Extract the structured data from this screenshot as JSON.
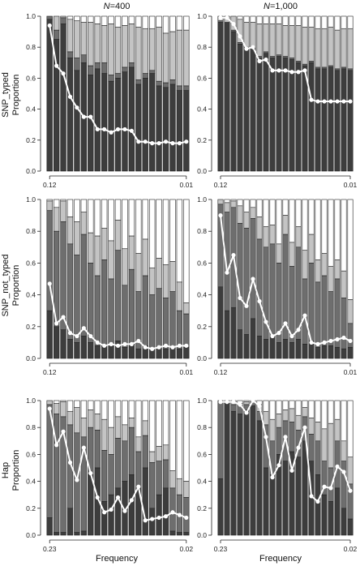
{
  "figure": {
    "columns": [
      {
        "prefix": "N",
        "suffix": "=400"
      },
      {
        "prefix": "N",
        "suffix": "=1,000"
      }
    ],
    "rows": [
      {
        "name": "SNP_typed",
        "ylabel": "Proportion"
      },
      {
        "name": "SNP_not_typed",
        "ylabel": "Proportion"
      },
      {
        "name": "Hap",
        "ylabel": "Proportion"
      }
    ],
    "xlabel": "Frequency",
    "bar_colors": [
      "#3d3d3d",
      "#6e6e6e",
      "#c4c4c4",
      "#ffffff"
    ],
    "line_color": "#ffffff",
    "bar_stroke": "#222222"
  },
  "chart_data": [
    {
      "type": "bar",
      "panel": "SNP_typed N=400",
      "row_label": "SNP_typed",
      "column_label": "N=400",
      "x_tick_labels": [
        "0.12",
        "0.01"
      ],
      "ylim": [
        0,
        1
      ],
      "yticks": [
        0,
        0.2,
        0.4,
        0.6,
        0.8,
        1.0
      ],
      "series": [
        {
          "values": [
            0.98,
            0.85,
            0.95,
            0.73,
            0.65,
            0.7,
            0.62,
            0.66,
            0.63,
            0.58,
            0.6,
            0.64,
            0.67,
            0.56,
            0.6,
            0.63,
            0.55,
            0.54,
            0.56,
            0.52,
            0.52
          ]
        },
        {
          "values": [
            1.0,
            0.91,
            0.99,
            0.77,
            0.73,
            0.75,
            0.68,
            0.7,
            0.7,
            0.62,
            0.63,
            0.67,
            0.7,
            0.59,
            0.63,
            0.65,
            0.58,
            0.57,
            0.59,
            0.55,
            0.55
          ]
        },
        {
          "values": [
            1.0,
            1.0,
            1.0,
            0.98,
            0.97,
            0.96,
            0.96,
            0.95,
            0.94,
            0.95,
            0.93,
            0.94,
            0.95,
            0.93,
            0.92,
            0.92,
            0.93,
            0.89,
            0.9,
            0.91,
            0.91
          ]
        },
        {
          "values": [
            1,
            1,
            1,
            1,
            1,
            1,
            1,
            1,
            1,
            1,
            1,
            1,
            1,
            1,
            1,
            1,
            1,
            1,
            1,
            1,
            1
          ]
        }
      ],
      "line": [
        0.94,
        0.68,
        0.63,
        0.48,
        0.41,
        0.35,
        0.35,
        0.27,
        0.27,
        0.25,
        0.27,
        0.27,
        0.26,
        0.19,
        0.19,
        0.18,
        0.18,
        0.19,
        0.18,
        0.18,
        0.19
      ]
    },
    {
      "type": "bar",
      "panel": "SNP_typed N=1,000",
      "row_label": "SNP_typed",
      "column_label": "N=1,000",
      "x_tick_labels": [
        "0.12",
        "0.01"
      ],
      "ylim": [
        0,
        1
      ],
      "yticks": [
        0,
        0.2,
        0.4,
        0.6,
        0.8,
        1.0
      ],
      "series": [
        {
          "values": [
            0.96,
            0.96,
            0.9,
            0.82,
            0.79,
            0.79,
            0.73,
            0.76,
            0.73,
            0.74,
            0.73,
            0.72,
            0.7,
            0.68,
            0.7,
            0.66,
            0.66,
            0.67,
            0.65,
            0.66,
            0.65
          ]
        },
        {
          "values": [
            0.97,
            0.96,
            0.91,
            0.83,
            0.8,
            0.8,
            0.74,
            0.77,
            0.74,
            0.75,
            0.74,
            0.73,
            0.71,
            0.69,
            0.71,
            0.67,
            0.67,
            0.68,
            0.66,
            0.67,
            0.66
          ]
        },
        {
          "values": [
            1.0,
            1.0,
            1.0,
            0.98,
            0.96,
            0.96,
            0.95,
            0.95,
            0.95,
            0.95,
            0.94,
            0.94,
            0.94,
            0.93,
            0.93,
            0.92,
            0.92,
            0.93,
            0.91,
            0.92,
            0.92
          ]
        },
        {
          "values": [
            1,
            1,
            1,
            1,
            1,
            1,
            1,
            1,
            1,
            1,
            1,
            1,
            1,
            1,
            1,
            1,
            1,
            1,
            1,
            1,
            1
          ]
        }
      ],
      "line": [
        0.99,
        0.99,
        0.95,
        0.87,
        0.79,
        0.8,
        0.71,
        0.72,
        0.65,
        0.65,
        0.65,
        0.64,
        0.64,
        0.65,
        0.46,
        0.45,
        0.45,
        0.45,
        0.45,
        0.45,
        0.45
      ]
    },
    {
      "type": "bar",
      "panel": "SNP_not_typed N=400",
      "row_label": "SNP_not_typed",
      "column_label": "N=400",
      "x_tick_labels": [
        "0.12",
        "0.01"
      ],
      "ylim": [
        0,
        1
      ],
      "yticks": [
        0,
        0.2,
        0.4,
        0.6,
        0.8,
        1.0
      ],
      "series": [
        {
          "values": [
            0.3,
            0.2,
            0.18,
            0.12,
            0.1,
            0.14,
            0.1,
            0.08,
            0.09,
            0.08,
            0.11,
            0.07,
            0.09,
            0.06,
            0.08,
            0.06,
            0.07,
            0.06,
            0.07,
            0.06,
            0.07
          ]
        },
        {
          "values": [
            0.93,
            0.8,
            0.86,
            0.72,
            0.65,
            0.78,
            0.6,
            0.52,
            0.62,
            0.5,
            0.68,
            0.46,
            0.56,
            0.42,
            0.52,
            0.4,
            0.44,
            0.38,
            0.42,
            0.3,
            0.28
          ]
        },
        {
          "values": [
            0.99,
            0.95,
            0.99,
            0.89,
            0.86,
            0.92,
            0.79,
            0.77,
            0.82,
            0.74,
            0.87,
            0.69,
            0.77,
            0.66,
            0.75,
            0.57,
            0.63,
            0.59,
            0.61,
            0.48,
            0.35
          ]
        },
        {
          "values": [
            1,
            1,
            1,
            1,
            1,
            1,
            1,
            1,
            1,
            1,
            1,
            1,
            1,
            1,
            1,
            1,
            1,
            1,
            1,
            1,
            1
          ]
        }
      ],
      "line": [
        0.47,
        0.22,
        0.26,
        0.16,
        0.14,
        0.19,
        0.14,
        0.1,
        0.08,
        0.09,
        0.08,
        0.09,
        0.09,
        0.11,
        0.07,
        0.06,
        0.07,
        0.08,
        0.07,
        0.08,
        0.08
      ]
    },
    {
      "type": "bar",
      "panel": "SNP_not_typed N=1,000",
      "row_label": "SNP_not_typed",
      "column_label": "N=1,000",
      "x_tick_labels": [
        "0.12",
        "0.01"
      ],
      "ylim": [
        0,
        1
      ],
      "yticks": [
        0,
        0.2,
        0.4,
        0.6,
        0.8,
        1.0
      ],
      "series": [
        {
          "values": [
            0.45,
            0.3,
            0.32,
            0.18,
            0.15,
            0.25,
            0.14,
            0.12,
            0.14,
            0.1,
            0.12,
            0.1,
            0.12,
            0.09,
            0.11,
            0.07,
            0.08,
            0.08,
            0.07,
            0.06,
            0.07
          ]
        },
        {
          "values": [
            0.97,
            0.92,
            0.95,
            0.85,
            0.82,
            0.88,
            0.75,
            0.7,
            0.72,
            0.6,
            0.78,
            0.58,
            0.7,
            0.5,
            0.6,
            0.48,
            0.52,
            0.42,
            0.5,
            0.38,
            0.22
          ]
        },
        {
          "values": [
            1.0,
            0.98,
            0.99,
            0.96,
            0.92,
            0.95,
            0.89,
            0.83,
            0.84,
            0.72,
            0.9,
            0.73,
            0.83,
            0.68,
            0.78,
            0.62,
            0.66,
            0.58,
            0.62,
            0.55,
            0.37
          ]
        },
        {
          "values": [
            1,
            1,
            1,
            1,
            1,
            1,
            1,
            1,
            1,
            1,
            1,
            1,
            1,
            1,
            1,
            1,
            1,
            1,
            1,
            1,
            1
          ]
        }
      ],
      "line": [
        0.9,
        0.54,
        0.65,
        0.38,
        0.33,
        0.5,
        0.36,
        0.23,
        0.14,
        0.16,
        0.22,
        0.14,
        0.18,
        0.27,
        0.1,
        0.09,
        0.1,
        0.11,
        0.12,
        0.13,
        0.11
      ]
    },
    {
      "type": "bar",
      "panel": "Hap N=400",
      "row_label": "Hap",
      "column_label": "N=400",
      "x_tick_labels": [
        "0.23",
        "0.02"
      ],
      "ylim": [
        0,
        1
      ],
      "yticks": [
        0,
        0.2,
        0.4,
        0.6,
        0.8,
        1.0
      ],
      "series": [
        {
          "values": [
            0.13,
            0.02,
            0.02,
            0.2,
            0.02,
            0.03,
            0.45,
            0.5,
            0.25,
            0.3,
            0.35,
            0.4,
            0.45,
            0.35,
            0.5,
            0.2,
            0.3,
            0.35,
            0.03,
            0.02,
            0.02
          ]
        },
        {
          "values": [
            0.97,
            0.9,
            0.88,
            0.82,
            0.76,
            0.73,
            0.8,
            0.78,
            0.63,
            0.6,
            0.72,
            0.7,
            0.8,
            0.62,
            0.74,
            0.54,
            0.55,
            0.56,
            0.35,
            0.3,
            0.28
          ]
        },
        {
          "values": [
            1.0,
            0.98,
            0.99,
            0.92,
            0.95,
            0.87,
            0.93,
            0.9,
            0.86,
            0.8,
            0.88,
            0.82,
            0.87,
            0.73,
            0.85,
            0.62,
            0.66,
            0.67,
            0.48,
            0.42,
            0.4
          ]
        },
        {
          "values": [
            1,
            1,
            1,
            1,
            1,
            1,
            1,
            1,
            1,
            1,
            1,
            1,
            1,
            1,
            1,
            1,
            1,
            1,
            1,
            1,
            1
          ]
        }
      ],
      "line": [
        0.94,
        0.67,
        0.77,
        0.54,
        0.41,
        0.65,
        0.46,
        0.28,
        0.17,
        0.19,
        0.28,
        0.18,
        0.26,
        0.36,
        0.11,
        0.12,
        0.13,
        0.14,
        0.17,
        0.15,
        0.13
      ]
    },
    {
      "type": "bar",
      "panel": "Hap N=1,000",
      "row_label": "Hap",
      "column_label": "N=1,000",
      "x_tick_labels": [
        "0.23",
        "0.02"
      ],
      "ylim": [
        0,
        1
      ],
      "yticks": [
        0,
        0.2,
        0.4,
        0.6,
        0.8,
        1.0
      ],
      "series": [
        {
          "values": [
            0.42,
            0.98,
            0.92,
            0.9,
            0.93,
            0.96,
            0.85,
            0.5,
            0.45,
            0.6,
            0.55,
            0.62,
            0.58,
            0.7,
            0.55,
            0.45,
            0.3,
            0.25,
            0.35,
            0.2,
            0.12
          ]
        },
        {
          "values": [
            1.0,
            0.99,
            0.97,
            0.96,
            0.97,
            0.99,
            0.92,
            0.82,
            0.7,
            0.8,
            0.85,
            0.84,
            0.78,
            0.88,
            0.75,
            0.7,
            0.55,
            0.5,
            0.7,
            0.55,
            0.38
          ]
        },
        {
          "values": [
            1.0,
            1.0,
            0.99,
            0.98,
            0.99,
            1.0,
            0.97,
            0.92,
            0.86,
            0.9,
            0.93,
            0.94,
            0.89,
            0.95,
            0.87,
            0.84,
            0.79,
            0.83,
            0.86,
            0.7,
            0.58
          ]
        },
        {
          "values": [
            1,
            1,
            1,
            1,
            1,
            1,
            1,
            1,
            1,
            1,
            1,
            1,
            1,
            1,
            1,
            1,
            1,
            1,
            1,
            1,
            1
          ]
        }
      ],
      "line": [
        0.99,
        0.99,
        0.99,
        0.97,
        0.91,
        1.0,
        0.96,
        0.73,
        0.43,
        0.52,
        0.73,
        0.48,
        0.65,
        0.8,
        0.29,
        0.25,
        0.36,
        0.35,
        0.51,
        0.47,
        0.33
      ]
    }
  ]
}
